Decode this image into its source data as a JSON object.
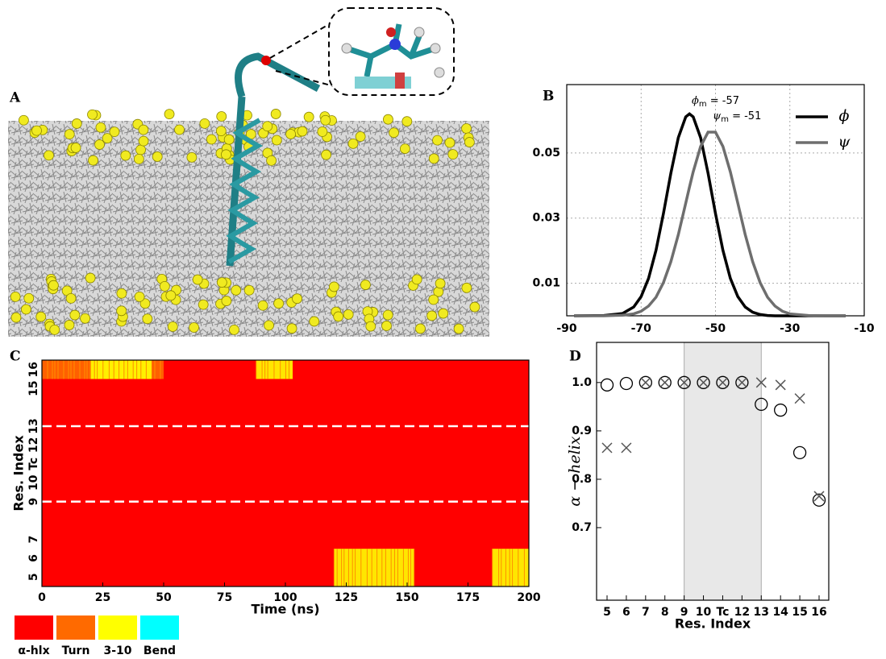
{
  "panel_a": {
    "panel": "A"
  },
  "chart_data": [
    {
      "type": "line",
      "panel": "B",
      "x": [
        -88,
        -80,
        -75,
        -72,
        -70,
        -68,
        -66,
        -64,
        -62,
        -60,
        -58,
        -57,
        -56,
        -54,
        -52,
        -50,
        -48,
        -46,
        -44,
        -42,
        -40,
        -38,
        -36,
        -34,
        -32,
        -30,
        -25,
        -20,
        -15
      ],
      "series": [
        {
          "name": "ϕ",
          "color": "#000000",
          "values": [
            0,
            0.0001,
            0.0007,
            0.0027,
            0.0059,
            0.0115,
            0.0201,
            0.0314,
            0.0438,
            0.0547,
            0.0611,
            0.062,
            0.0611,
            0.0547,
            0.0438,
            0.0314,
            0.0201,
            0.0115,
            0.0059,
            0.0027,
            0.0011,
            0.0004,
            0.0001,
            0,
            0,
            0,
            0,
            0,
            0
          ]
        },
        {
          "name": "ψ",
          "color": "#6e6e6e",
          "values": [
            0,
            0,
            0.0002,
            0.0006,
            0.0014,
            0.003,
            0.0057,
            0.0102,
            0.0166,
            0.0249,
            0.0346,
            0.0395,
            0.0442,
            0.052,
            0.0564,
            0.0564,
            0.052,
            0.0442,
            0.0346,
            0.0249,
            0.0166,
            0.0102,
            0.0057,
            0.003,
            0.0014,
            0.0006,
            0.0001,
            0,
            0
          ]
        }
      ],
      "annotations": [
        {
          "symbol": "ϕ",
          "sub": "m",
          "text": " = -57"
        },
        {
          "symbol": "ψ",
          "sub": "m",
          "text": " = -51"
        }
      ],
      "xlim": [
        -90,
        -10
      ],
      "xticks": [
        -90,
        -70,
        -50,
        -30,
        -10
      ],
      "ylim": [
        0,
        0.071
      ],
      "yticks": [
        0.01,
        0.03,
        0.05
      ],
      "grid": true,
      "legend": "upper right"
    },
    {
      "type": "heatmap",
      "panel": "C",
      "categories": [
        "5",
        "6",
        "7",
        null,
        "9",
        "10",
        "Tc",
        "12",
        "13",
        null,
        "15",
        "16"
      ],
      "xlim": [
        0,
        200
      ],
      "xticks": [
        0,
        25,
        50,
        75,
        100,
        125,
        150,
        175,
        200
      ],
      "xlabel": "Time (ns)",
      "ylabel": "Res. Index",
      "base_state": "α-hlx",
      "legend": [
        {
          "name": "α-hlx",
          "color": "#ff0000"
        },
        {
          "name": "Turn",
          "color": "#ff6a00"
        },
        {
          "name": "3-10",
          "color": "#ffff00"
        },
        {
          "name": "Bend",
          "color": "#00ffff"
        }
      ],
      "segments": [
        {
          "rows": [
            11,
            11
          ],
          "x": [
            0,
            50
          ],
          "state": "Turn"
        },
        {
          "rows": [
            11,
            11
          ],
          "x": [
            20,
            45
          ],
          "state": "3-10"
        },
        {
          "rows": [
            11,
            11
          ],
          "x": [
            88,
            103
          ],
          "state": "3-10"
        },
        {
          "rows": [
            0,
            1
          ],
          "x": [
            120,
            153
          ],
          "state": "3-10"
        },
        {
          "rows": [
            0,
            1
          ],
          "x": [
            185,
            200
          ],
          "state": "3-10"
        }
      ],
      "dashed_rows": [
        4,
        8
      ]
    },
    {
      "type": "scatter",
      "panel": "D",
      "categories": [
        "5",
        "6",
        "7",
        "8",
        "9",
        "10",
        "Tc",
        "12",
        "13",
        "14",
        "15",
        "16"
      ],
      "series": [
        {
          "marker": "circle",
          "color": "#000000",
          "values": [
            0.995,
            0.998,
            1,
            1,
            1,
            1,
            1,
            1,
            0.955,
            0.943,
            0.855,
            0.757
          ]
        },
        {
          "marker": "cross",
          "color": "#555555",
          "values": [
            0.865,
            0.865,
            1,
            1,
            1,
            1,
            1,
            1,
            1,
            0.995,
            0.967,
            0.765
          ]
        }
      ],
      "shade": [
        4,
        8
      ],
      "ylim": [
        0.55,
        1.083
      ],
      "yticks": [
        0.7,
        0.8,
        0.9,
        {
          "value": 1,
          "label": "1.0"
        }
      ],
      "xlabel": "Res. Index",
      "ylabel": "α − helix"
    }
  ]
}
